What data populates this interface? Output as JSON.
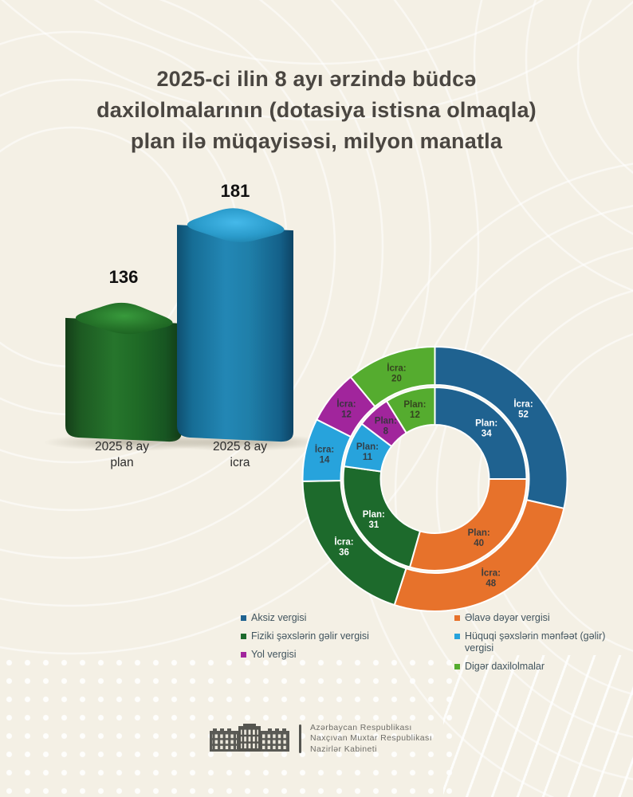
{
  "title_lines": [
    "2025-ci ilin 8 ayı ərzində büdcə",
    "daxilolmalarının (dotasiya istisna olmaqla)",
    "plan ilə müqayisəsi, milyon manatla"
  ],
  "colors": {
    "background": "#f4f0e5",
    "aksiz": "#1f6290",
    "elave_deyer": "#e7722b",
    "fiziki": "#1d6a2c",
    "huquqi": "#27a3dc",
    "yol": "#a1259c",
    "diger": "#55ac2f"
  },
  "chart_data": [
    {
      "type": "bar",
      "title": "Büdcə daxilolmaları: plan və icra",
      "categories": [
        "2025 8 ay\nplan",
        "2025 8 ay\nicra"
      ],
      "values": [
        136,
        181
      ],
      "colors": [
        "#1d6a2c",
        "#1f7fad"
      ],
      "ylabel": "milyon manat"
    },
    {
      "type": "donut",
      "categories": [
        "Aksiz vergisi",
        "Əlavə dəyər vergisi",
        "Fiziki şəxslərin gəlir vergisi",
        "Hüquqi şəxslərin mənfəət (gəlir) vergisi",
        "Yol vergisi",
        "Digər daxilolmalar"
      ],
      "colors": [
        "#1f6290",
        "#e7722b",
        "#1d6a2c",
        "#27a3dc",
        "#a1259c",
        "#55ac2f"
      ],
      "label_text_colors": [
        "#ffffff",
        "#3d3d3d",
        "#ffffff",
        "#32404a",
        "#3a3340",
        "#35441f"
      ],
      "series": [
        {
          "name": "İcra",
          "ring": "outer",
          "label_prefix": "İcra:",
          "values": [
            52,
            48,
            36,
            14,
            12,
            20
          ]
        },
        {
          "name": "Plan",
          "ring": "inner",
          "label_prefix": "Plan:",
          "values": [
            34,
            40,
            31,
            11,
            8,
            12
          ]
        }
      ],
      "start_angle_deg": 0,
      "direction": "clockwise"
    }
  ],
  "legend": {
    "columns": [
      [
        {
          "label": "Aksiz vergisi",
          "color": "#1f6290"
        },
        {
          "label": "Fiziki şəxslərin gəlir vergisi",
          "color": "#1d6a2c"
        },
        {
          "label": "Yol vergisi",
          "color": "#a1259c"
        }
      ],
      [
        {
          "label": "Əlavə dəyər vergisi",
          "color": "#e7722b"
        },
        {
          "label": "Hüquqi şəxslərin mənfəət (gəlir) vergisi",
          "color": "#27a3dc"
        },
        {
          "label": "Digər daxilolmalar",
          "color": "#55ac2f"
        }
      ]
    ]
  },
  "footer": {
    "lines": [
      "Azərbaycan Respublikası",
      "Naxçıvan Muxtar Respublikası",
      "Nazirlər Kabineti"
    ]
  }
}
